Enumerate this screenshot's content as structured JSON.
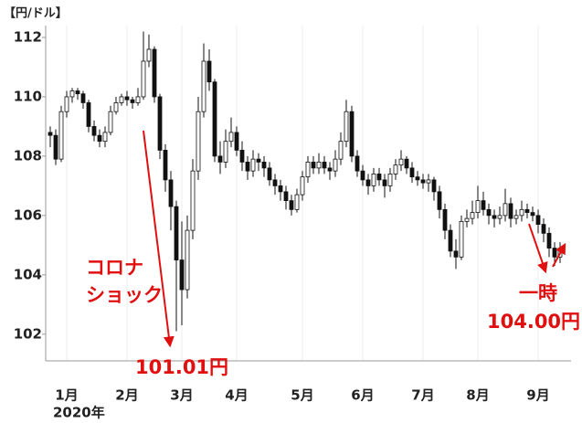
{
  "chart_data": {
    "type": "candlestick",
    "y_label": "【円/ドル】",
    "x_sublabel": "2020年",
    "categories": [
      null,
      null,
      null,
      "1月",
      null,
      null,
      null,
      null,
      null,
      null,
      null,
      null,
      null,
      null,
      "2月",
      null,
      null,
      null,
      null,
      null,
      null,
      null,
      null,
      null,
      "3月",
      null,
      null,
      null,
      null,
      null,
      null,
      null,
      null,
      null,
      "4月",
      null,
      null,
      null,
      null,
      null,
      null,
      null,
      null,
      null,
      null,
      null,
      "5月",
      null,
      null,
      null,
      null,
      null,
      null,
      null,
      null,
      null,
      null,
      "6月",
      null,
      null,
      null,
      null,
      null,
      null,
      null,
      null,
      null,
      null,
      "7月",
      null,
      null,
      null,
      null,
      null,
      null,
      null,
      null,
      null,
      "8月",
      null,
      null,
      null,
      null,
      null,
      null,
      null,
      null,
      null,
      null,
      "9月",
      null,
      null,
      null,
      null
    ],
    "open": [
      108.8,
      108.7,
      107.9,
      109.5,
      110.0,
      110.2,
      110.1,
      109.8,
      109.0,
      108.7,
      108.5,
      108.8,
      109.5,
      109.8,
      110.0,
      109.9,
      109.8,
      110.0,
      111.2,
      111.6,
      110.0,
      108.2,
      107.2,
      106.3,
      104.5,
      103.5,
      105.5,
      107.5,
      109.5,
      111.2,
      110.5,
      108.0,
      107.8,
      108.5,
      108.8,
      108.2,
      107.8,
      107.5,
      107.9,
      107.8,
      107.6,
      107.2,
      107.0,
      106.8,
      106.5,
      106.2,
      106.7,
      107.3,
      107.8,
      107.6,
      107.8,
      107.6,
      107.5,
      107.9,
      108.5,
      109.5,
      108.0,
      107.5,
      107.2,
      107.0,
      107.4,
      107.2,
      107.0,
      107.4,
      107.7,
      107.9,
      107.6,
      107.3,
      107.2,
      107.1,
      107.2,
      106.8,
      106.2,
      105.5,
      104.8,
      104.6,
      105.8,
      105.9,
      106.1,
      106.5,
      106.2,
      106.0,
      105.9,
      106.0,
      106.4,
      105.9,
      106.0,
      106.2,
      106.1,
      106.0,
      105.7,
      105.4,
      104.9,
      104.6
    ],
    "high": [
      109.0,
      108.9,
      109.7,
      110.2,
      110.3,
      110.3,
      110.2,
      109.9,
      109.2,
      108.9,
      109.0,
      109.7,
      110.0,
      110.1,
      110.2,
      110.0,
      110.3,
      112.2,
      112.1,
      111.7,
      110.1,
      108.4,
      107.5,
      106.5,
      105.8,
      106.0,
      107.9,
      110.0,
      111.8,
      111.6,
      110.6,
      108.5,
      108.9,
      109.3,
      109.0,
      108.5,
      108.0,
      108.2,
      108.1,
      108.0,
      107.8,
      107.4,
      107.2,
      107.0,
      106.7,
      106.9,
      107.5,
      108.0,
      108.0,
      108.1,
      108.0,
      107.8,
      108.2,
      108.8,
      109.9,
      109.7,
      108.2,
      107.7,
      107.4,
      107.6,
      107.6,
      107.4,
      107.6,
      107.9,
      108.2,
      108.0,
      107.8,
      107.5,
      107.4,
      107.4,
      107.3,
      107.0,
      106.4,
      105.7,
      105.2,
      106.0,
      106.2,
      106.5,
      107.0,
      106.8,
      106.4,
      106.2,
      106.3,
      106.9,
      106.6,
      106.2,
      106.5,
      106.4,
      106.3,
      106.2,
      105.9,
      105.6,
      105.1,
      105.1
    ],
    "low": [
      108.3,
      107.7,
      107.8,
      109.3,
      109.8,
      109.9,
      109.6,
      108.8,
      108.5,
      108.3,
      108.3,
      108.7,
      109.4,
      109.7,
      109.7,
      109.6,
      109.7,
      109.9,
      111.0,
      109.8,
      107.9,
      106.8,
      105.5,
      102.1,
      102.3,
      103.2,
      105.2,
      107.2,
      109.3,
      110.2,
      107.8,
      107.4,
      107.6,
      108.3,
      108.0,
      107.5,
      107.2,
      107.3,
      107.5,
      107.3,
      107.0,
      106.7,
      106.5,
      106.2,
      106.0,
      106.1,
      106.5,
      107.1,
      107.4,
      107.4,
      107.4,
      107.2,
      107.3,
      107.7,
      108.3,
      107.8,
      107.3,
      107.0,
      106.7,
      106.8,
      107.0,
      106.6,
      106.8,
      107.2,
      107.5,
      107.4,
      107.1,
      107.0,
      106.9,
      106.8,
      106.5,
      105.9,
      105.2,
      104.6,
      104.2,
      104.5,
      105.6,
      105.7,
      105.9,
      106.0,
      105.7,
      105.6,
      105.7,
      105.8,
      105.6,
      105.7,
      105.8,
      105.9,
      105.8,
      105.4,
      105.1,
      104.6,
      104.3,
      104.4
    ],
    "close": [
      108.7,
      107.9,
      109.5,
      110.0,
      110.2,
      110.1,
      109.8,
      109.0,
      108.7,
      108.5,
      108.8,
      109.5,
      109.8,
      110.0,
      109.9,
      109.8,
      110.0,
      111.2,
      111.6,
      110.0,
      108.2,
      107.2,
      106.3,
      104.5,
      103.5,
      105.5,
      107.5,
      109.5,
      111.2,
      110.5,
      108.0,
      107.8,
      108.5,
      108.8,
      108.2,
      107.8,
      107.5,
      107.9,
      107.8,
      107.6,
      107.2,
      107.0,
      106.8,
      106.5,
      106.2,
      106.7,
      107.3,
      107.8,
      107.6,
      107.8,
      107.6,
      107.5,
      107.9,
      108.5,
      109.5,
      108.0,
      107.5,
      107.2,
      107.0,
      107.4,
      107.2,
      107.0,
      107.4,
      107.7,
      107.9,
      107.6,
      107.3,
      107.2,
      107.1,
      107.2,
      106.8,
      106.2,
      105.5,
      104.8,
      104.6,
      105.8,
      105.9,
      106.1,
      106.5,
      106.2,
      106.0,
      105.9,
      106.0,
      106.4,
      105.9,
      106.0,
      106.2,
      106.1,
      106.0,
      105.7,
      105.4,
      104.9,
      104.6,
      104.9
    ],
    "up_color": "#ffffff",
    "down_color": "#111111",
    "ylim": [
      101.1,
      112.4
    ],
    "yticks": [
      102,
      104,
      106,
      108,
      110,
      112
    ],
    "annotations": [
      "コロナ",
      "ショック",
      "101.01円",
      "一時",
      "104.00円"
    ]
  }
}
